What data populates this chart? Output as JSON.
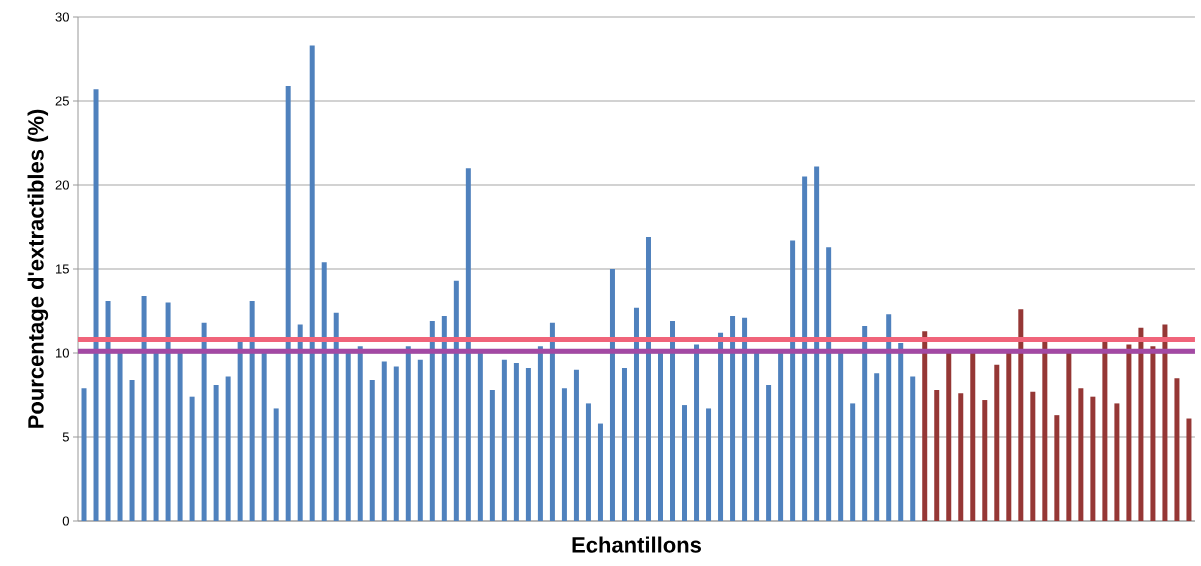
{
  "chart_data": {
    "type": "bar",
    "xlabel": "Echantillons",
    "ylabel": "Pourcentage d'extractibles (%)",
    "categories": [
      null,
      null,
      null,
      null,
      null,
      null,
      null,
      null,
      null,
      null,
      null,
      null,
      null,
      null,
      null,
      null,
      null,
      null,
      null,
      null,
      null,
      null,
      null,
      null,
      null,
      null,
      null,
      null,
      null,
      null,
      null,
      null,
      null,
      null,
      null,
      null,
      null,
      null,
      null,
      null,
      null,
      null,
      null,
      null,
      null,
      null,
      null,
      null,
      null,
      null,
      null,
      null,
      null,
      null,
      null,
      null,
      null,
      null,
      null,
      null,
      null,
      null,
      null,
      null,
      null,
      null,
      null,
      null,
      null,
      null,
      null,
      null,
      null,
      null,
      null,
      null,
      null,
      null,
      null,
      null,
      null,
      null,
      null,
      null,
      null,
      null,
      null,
      null,
      null,
      null,
      null,
      null,
      null
    ],
    "series": [
      {
        "color": "#4f81bd",
        "values": [
          7.9,
          25.7,
          13.1,
          10,
          8.4,
          13.4,
          10,
          13.0,
          10,
          7.4,
          11.8,
          8.1,
          8.6,
          10.7,
          13.1,
          10,
          6.7,
          25.9,
          11.7,
          28.3,
          15.4,
          12.4,
          10,
          10.4,
          8.4,
          9.5,
          9.2,
          10.4,
          9.6,
          11.9,
          12.2,
          14.3,
          21.0,
          10,
          7.8,
          9.6,
          9.4,
          9.1,
          10.4,
          11.8,
          7.9,
          9.0,
          7.0,
          5.8,
          15.0,
          9.1,
          12.7,
          16.9,
          10,
          11.9,
          6.9,
          10.5,
          6.7,
          11.2,
          12.2,
          12.1,
          10,
          8.1,
          10,
          16.7,
          20.5,
          21.1,
          16.3,
          10,
          7.0,
          11.6,
          8.8,
          12.3,
          10.6,
          8.6,
          null,
          null,
          null,
          null,
          null,
          null,
          null,
          null,
          null,
          null,
          null,
          null,
          null,
          null,
          null,
          null,
          null,
          null,
          null,
          null,
          null,
          null,
          null
        ]
      },
      {
        "color": "#953735",
        "values": [
          null,
          null,
          null,
          null,
          null,
          null,
          null,
          null,
          null,
          null,
          null,
          null,
          null,
          null,
          null,
          null,
          null,
          null,
          null,
          null,
          null,
          null,
          null,
          null,
          null,
          null,
          null,
          null,
          null,
          null,
          null,
          null,
          null,
          null,
          null,
          null,
          null,
          null,
          null,
          null,
          null,
          null,
          null,
          null,
          null,
          null,
          null,
          null,
          null,
          null,
          null,
          null,
          null,
          null,
          null,
          null,
          null,
          null,
          null,
          null,
          null,
          null,
          null,
          null,
          null,
          null,
          null,
          null,
          null,
          null,
          11.3,
          7.8,
          10,
          7.6,
          10,
          7.2,
          9.3,
          10,
          12.6,
          7.7,
          10.7,
          6.3,
          10,
          7.9,
          7.4,
          10.7,
          7.0,
          10.5,
          11.5,
          10.4,
          11.7,
          8.5,
          6.1
        ]
      }
    ],
    "ylim": [
      0,
      30
    ],
    "yticks": [
      0,
      5,
      10,
      15,
      20,
      25,
      30
    ],
    "grid": "y",
    "ref_lines": [
      {
        "axis": "y",
        "value": 10.8,
        "color": "#f0647a"
      },
      {
        "axis": "y",
        "value": 10.1,
        "color": "#a349a4"
      }
    ]
  }
}
